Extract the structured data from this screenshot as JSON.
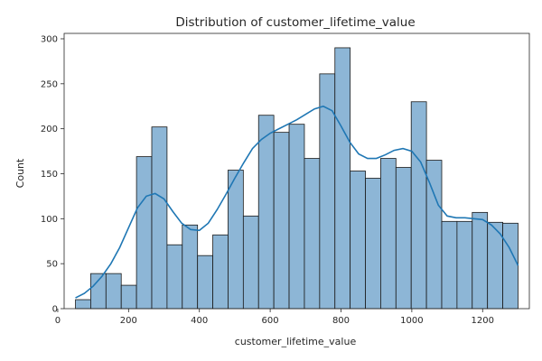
{
  "chart_data": {
    "type": "bar",
    "title": "Distribution of customer_lifetime_value",
    "xlabel": "customer_lifetime_value",
    "ylabel": "Count",
    "xlim": [
      18,
      1332
    ],
    "ylim": [
      0,
      306
    ],
    "xticks": [
      0,
      200,
      400,
      600,
      800,
      1000,
      1200
    ],
    "yticks": [
      0,
      50,
      100,
      150,
      200,
      250,
      300
    ],
    "grid": false,
    "bar_color": "#8db6d6",
    "edge_color": "#1a1a1a",
    "kde_color": "#1f77b4",
    "bins": [
      {
        "x0": 50,
        "x1": 93.1,
        "count": 10
      },
      {
        "x0": 93.1,
        "x1": 136.2,
        "count": 39
      },
      {
        "x0": 136.2,
        "x1": 179.3,
        "count": 39
      },
      {
        "x0": 179.3,
        "x1": 222.4,
        "count": 26
      },
      {
        "x0": 222.4,
        "x1": 265.5,
        "count": 169
      },
      {
        "x0": 265.5,
        "x1": 308.6,
        "count": 202
      },
      {
        "x0": 308.6,
        "x1": 351.7,
        "count": 71
      },
      {
        "x0": 351.7,
        "x1": 394.8,
        "count": 93
      },
      {
        "x0": 394.8,
        "x1": 437.9,
        "count": 59
      },
      {
        "x0": 437.9,
        "x1": 481.0,
        "count": 82
      },
      {
        "x0": 481.0,
        "x1": 524.1,
        "count": 154
      },
      {
        "x0": 524.1,
        "x1": 567.2,
        "count": 103
      },
      {
        "x0": 567.2,
        "x1": 610.3,
        "count": 215
      },
      {
        "x0": 610.3,
        "x1": 653.4,
        "count": 196
      },
      {
        "x0": 653.4,
        "x1": 696.6,
        "count": 205
      },
      {
        "x0": 696.6,
        "x1": 739.7,
        "count": 167
      },
      {
        "x0": 739.7,
        "x1": 782.8,
        "count": 261
      },
      {
        "x0": 782.8,
        "x1": 825.9,
        "count": 290
      },
      {
        "x0": 825.9,
        "x1": 869.0,
        "count": 153
      },
      {
        "x0": 869.0,
        "x1": 912.1,
        "count": 145
      },
      {
        "x0": 912.1,
        "x1": 955.2,
        "count": 167
      },
      {
        "x0": 955.2,
        "x1": 998.3,
        "count": 157
      },
      {
        "x0": 998.3,
        "x1": 1041.4,
        "count": 230
      },
      {
        "x0": 1041.4,
        "x1": 1084.5,
        "count": 165
      },
      {
        "x0": 1084.5,
        "x1": 1127.6,
        "count": 97
      },
      {
        "x0": 1127.6,
        "x1": 1170.7,
        "count": 97
      },
      {
        "x0": 1170.7,
        "x1": 1213.8,
        "count": 107
      },
      {
        "x0": 1213.8,
        "x1": 1256.9,
        "count": 96
      },
      {
        "x0": 1256.9,
        "x1": 1300,
        "count": 95
      }
    ],
    "kde": {
      "x": [
        50,
        75,
        100,
        125,
        150,
        175,
        200,
        225,
        250,
        275,
        300,
        325,
        350,
        375,
        400,
        425,
        450,
        475,
        500,
        525,
        550,
        575,
        600,
        625,
        650,
        675,
        700,
        725,
        750,
        775,
        800,
        825,
        850,
        875,
        900,
        925,
        950,
        975,
        1000,
        1025,
        1050,
        1075,
        1100,
        1125,
        1150,
        1175,
        1200,
        1225,
        1250,
        1275,
        1300
      ],
      "y": [
        12,
        17,
        25,
        36,
        50,
        68,
        90,
        112,
        125,
        128,
        122,
        108,
        95,
        88,
        87,
        95,
        110,
        127,
        145,
        162,
        178,
        188,
        195,
        200,
        205,
        210,
        216,
        222,
        225,
        220,
        203,
        185,
        172,
        167,
        167,
        171,
        176,
        178,
        175,
        163,
        140,
        115,
        103,
        101,
        101,
        100,
        99,
        93,
        83,
        68,
        48
      ]
    }
  }
}
